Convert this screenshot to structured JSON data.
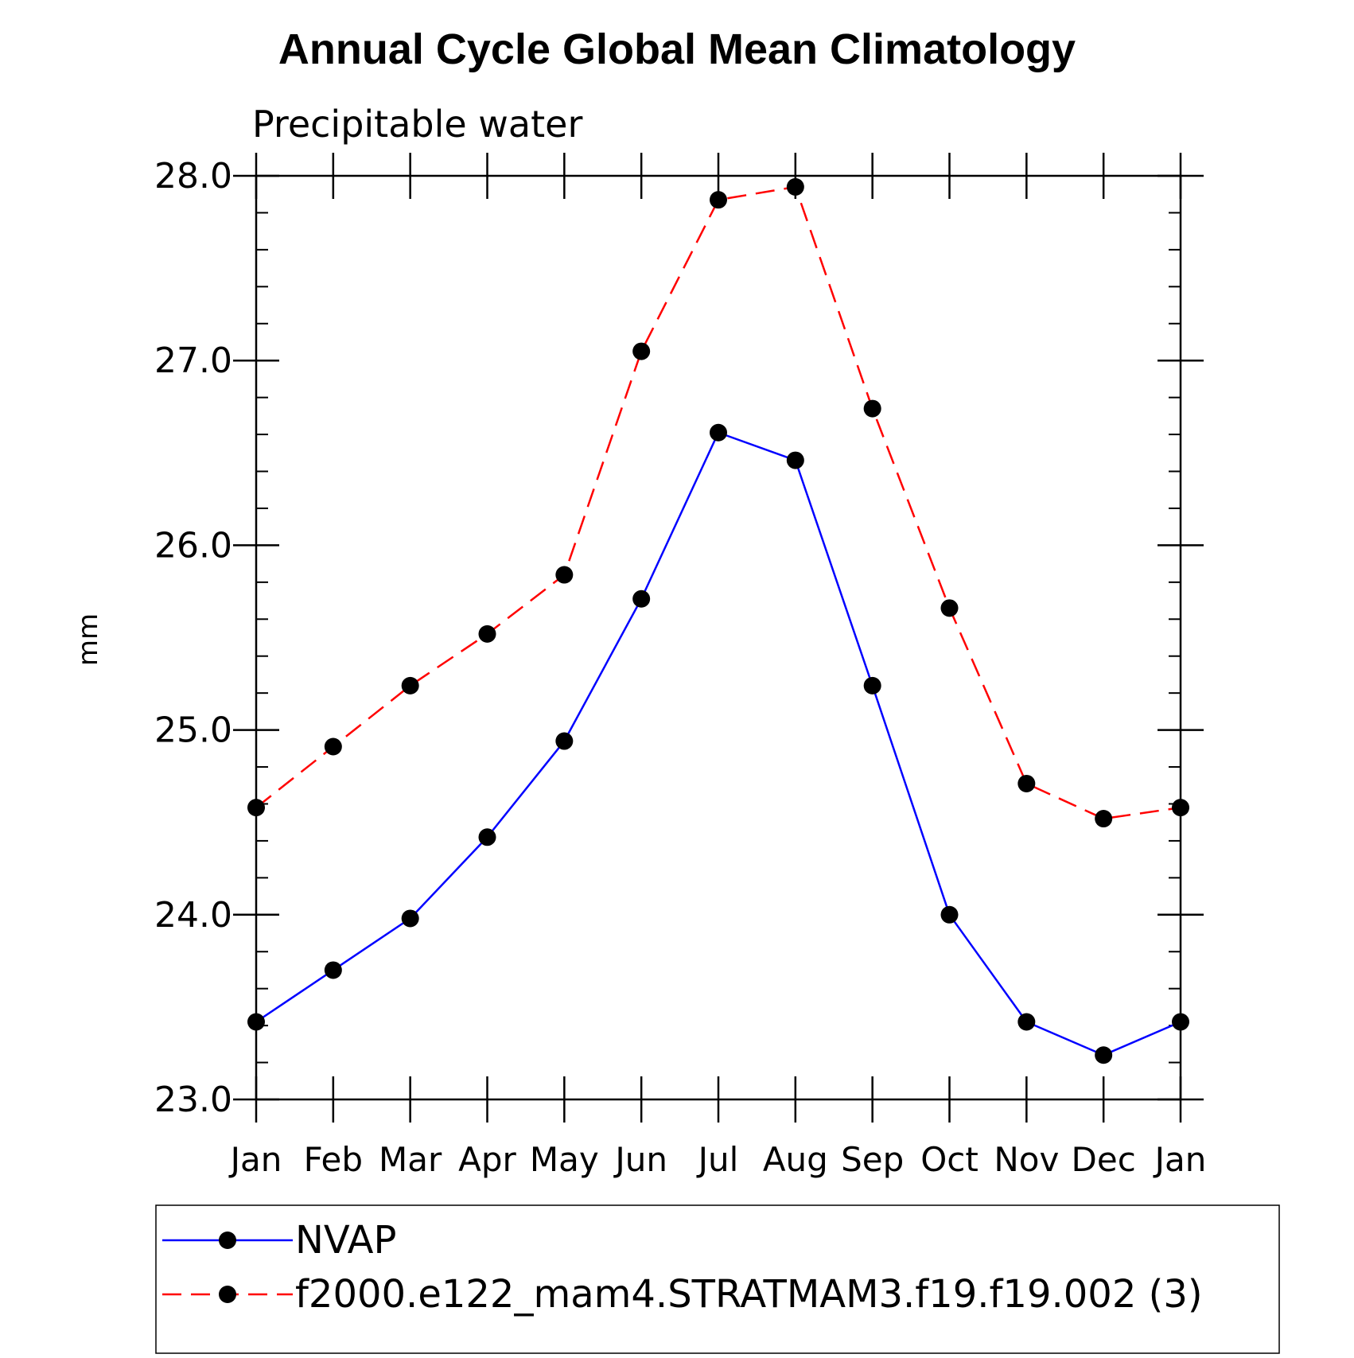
{
  "chart_data": {
    "type": "line",
    "title": "Annual Cycle Global Mean Climatology",
    "subtitle": "Precipitable water",
    "xlabel": "",
    "ylabel": "mm",
    "categories": [
      "Jan",
      "Feb",
      "Mar",
      "Apr",
      "May",
      "Jun",
      "Jul",
      "Aug",
      "Sep",
      "Oct",
      "Nov",
      "Dec",
      "Jan"
    ],
    "ylim": [
      23.0,
      28.0
    ],
    "yticks": [
      "23.0",
      "24.0",
      "25.0",
      "26.0",
      "27.0",
      "28.0"
    ],
    "grid": false,
    "legend_position": "bottom",
    "series": [
      {
        "name": "NVAP",
        "color": "#0000ff",
        "dash": "solid",
        "marker": "dot",
        "values": [
          23.42,
          23.7,
          23.98,
          24.42,
          24.94,
          25.71,
          26.61,
          26.46,
          25.24,
          24.0,
          23.42,
          23.24,
          23.42
        ]
      },
      {
        "name": "f2000.e122_mam4.STRATMAM3.f19.f19.002 (3)",
        "color": "#ff0000",
        "dash": "dashed",
        "marker": "dot",
        "values": [
          24.58,
          24.91,
          25.24,
          25.52,
          25.84,
          27.05,
          27.87,
          27.94,
          26.74,
          25.66,
          24.71,
          24.52,
          24.58
        ]
      }
    ]
  }
}
